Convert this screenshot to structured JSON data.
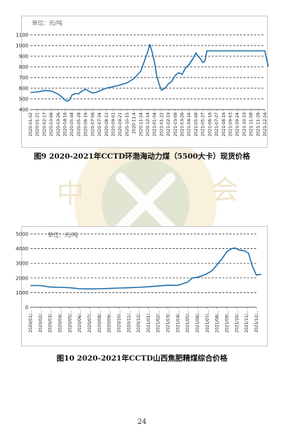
{
  "page": {
    "number": "24",
    "watermark_text": "中国煤炭工业协会 CHINA NATIONAL COAL ASSOCIATION"
  },
  "figure1": {
    "caption": "图9 2020-2021年CCTD环渤海动力煤（5500大卡）现货价格"
  },
  "figure2": {
    "caption": "图10 2020-2021年CCTD山西焦肥精煤综合价格"
  },
  "colors": {
    "line": "#1f6fa8",
    "grid": "#222222",
    "frame": "#c8c8c8"
  },
  "chart_data": [
    {
      "type": "line",
      "unit_label": "单位：元/吨",
      "ylim": [
        400,
        1100
      ],
      "yticks": [
        400,
        500,
        600,
        700,
        800,
        900,
        1000,
        1100
      ],
      "grid": "horizontal dashed",
      "xticks": [
        "2020-01-02",
        "2020-01-21",
        "2020-02-17",
        "2020-03-06",
        "2020-03-26",
        "2020-04-16",
        "2020-05-08",
        "2020-05-28",
        "2020-06-16",
        "2020-07-06",
        "2020-07-24",
        "2020-08-12",
        "2020-09-01",
        "2020-09-21",
        "2020-10-15",
        "2020-11-4",
        "2020-11-24",
        "2020-12-14",
        "2021-01-04",
        "2021-01-22",
        "2021-02-19",
        "2021-03-08",
        "2021-03-26",
        "2021-04-16",
        "2021-05-08",
        "2021-05-27",
        "2021-06-16",
        "2021-07-27",
        "2021-08-16",
        "2021-09-03",
        "2021-09-24",
        "2021-10-19",
        "2021-11-08",
        "2021-11-26",
        "2021-12-16"
      ],
      "series": [
        {
          "x": [
            0,
            1,
            2,
            3,
            4,
            4.6,
            5,
            5.3,
            5.6,
            6,
            6.5,
            7,
            7.5,
            8,
            8.5,
            9,
            9.5,
            10,
            11,
            12,
            13,
            14,
            15,
            16,
            17,
            17.3,
            17.6,
            18,
            18.3,
            18.6,
            19,
            19.5,
            20,
            20.5,
            21,
            21.5,
            22,
            22.5,
            23,
            23.5,
            24,
            24.3,
            24.6,
            25,
            25.3,
            25.6,
            26,
            26.5,
            27,
            30,
            33,
            34,
            34.5
          ],
          "y": [
            560,
            565,
            578,
            575,
            545,
            515,
            490,
            478,
            485,
            535,
            550,
            548,
            575,
            590,
            570,
            555,
            560,
            575,
            600,
            615,
            630,
            650,
            690,
            760,
            940,
            1010,
            950,
            840,
            720,
            650,
            580,
            600,
            640,
            665,
            720,
            745,
            730,
            790,
            820,
            870,
            930,
            900,
            880,
            840,
            855,
            950,
            950,
            950,
            950,
            950,
            950,
            950,
            800
          ]
        }
      ]
    },
    {
      "type": "line",
      "unit_label": "单位：元/吨",
      "ylim": [
        0,
        5000
      ],
      "yticks": [
        0,
        1000,
        2000,
        3000,
        4000,
        5000
      ],
      "grid": "horizontal dashed",
      "xticks": [
        "2020/01/...",
        "2020/02/...",
        "2020/03/...",
        "2020/04/...",
        "2020/05/...",
        "2020/06/...",
        "2020/07/...",
        "2020/08/...",
        "2020/09/...",
        "2020/10/...",
        "2020/11/...",
        "2020/12/...",
        "2021/01/...",
        "2021/02/...",
        "2021/03/...",
        "2021/04/...",
        "2021/05/...",
        "2021/06/...",
        "2021/07/...",
        "2021/08/...",
        "2021/09/...",
        "2021/10/...",
        "2021/11/...",
        "2021/12/..."
      ],
      "series": [
        {
          "x": [
            0,
            1,
            2,
            3,
            4,
            5,
            6,
            7,
            8,
            9,
            10,
            11,
            12,
            13,
            14,
            15,
            16,
            16.5,
            17,
            17.5,
            18,
            18.5,
            19,
            19.5,
            20,
            20.5,
            20.8,
            21.3,
            21.8,
            22.2,
            22.6,
            23,
            23.5
          ],
          "y": [
            1480,
            1480,
            1380,
            1360,
            1330,
            1260,
            1250,
            1260,
            1280,
            1310,
            1330,
            1360,
            1400,
            1450,
            1500,
            1490,
            1720,
            2000,
            2050,
            2150,
            2300,
            2500,
            2900,
            3300,
            3800,
            4000,
            4050,
            3900,
            3850,
            3700,
            2800,
            2200,
            2250
          ]
        }
      ]
    }
  ]
}
